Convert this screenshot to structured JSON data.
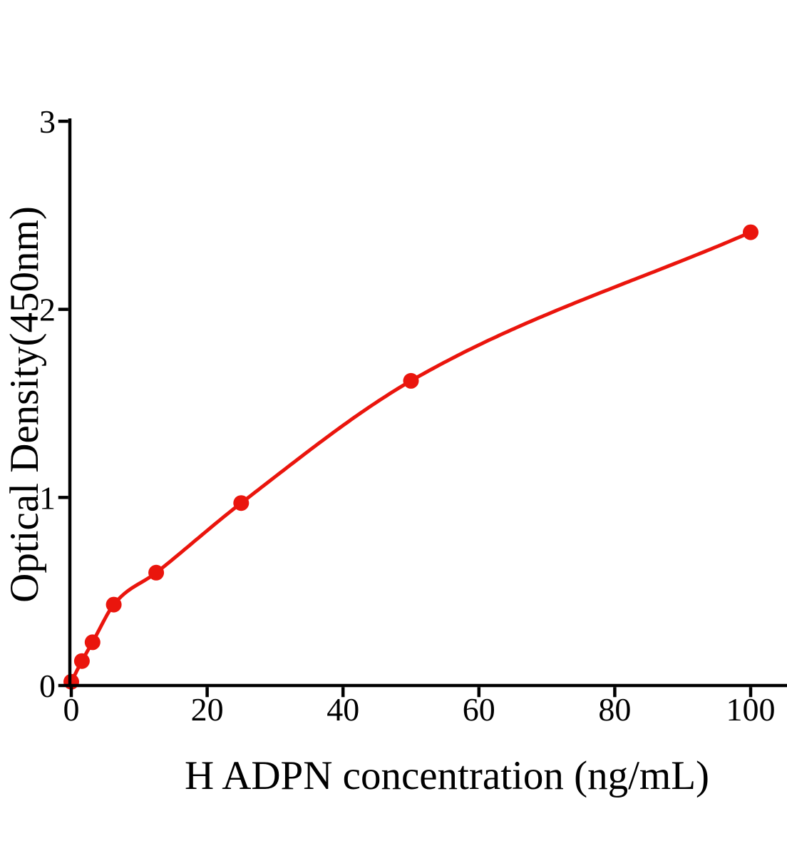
{
  "chart_data": {
    "type": "scatter",
    "title": "",
    "xlabel": "H ADPN concentration (ng/mL)",
    "ylabel": "Optical Density(450nm)",
    "x": [
      0,
      1.5625,
      3.125,
      6.25,
      12.5,
      25,
      50,
      100
    ],
    "y": [
      0.02,
      0.13,
      0.23,
      0.43,
      0.6,
      0.97,
      1.62,
      2.41
    ],
    "x_ticks": [
      0,
      20,
      40,
      60,
      80,
      100
    ],
    "y_ticks": [
      0,
      1,
      2,
      3
    ],
    "xlim": [
      0,
      105
    ],
    "ylim": [
      0,
      3
    ],
    "grid": false,
    "legend": false,
    "curve": "smooth fit line through data points",
    "colors": {
      "point": "#EA150D",
      "line": "#EA150D",
      "axis": "#000000",
      "background": "#FFFFFF"
    }
  }
}
